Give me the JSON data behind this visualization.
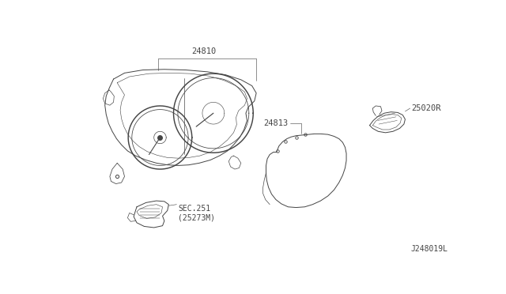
{
  "bg_color": "#f0f0ea",
  "line_color": "#444444",
  "text_color": "#444444",
  "title_label": "24810",
  "label_24813": "24813",
  "label_25020R": "25020R",
  "label_sec251": "SEC.251\n(25273M)",
  "footer": "J248019L",
  "lw": 0.7,
  "bg_white": "#ffffff"
}
